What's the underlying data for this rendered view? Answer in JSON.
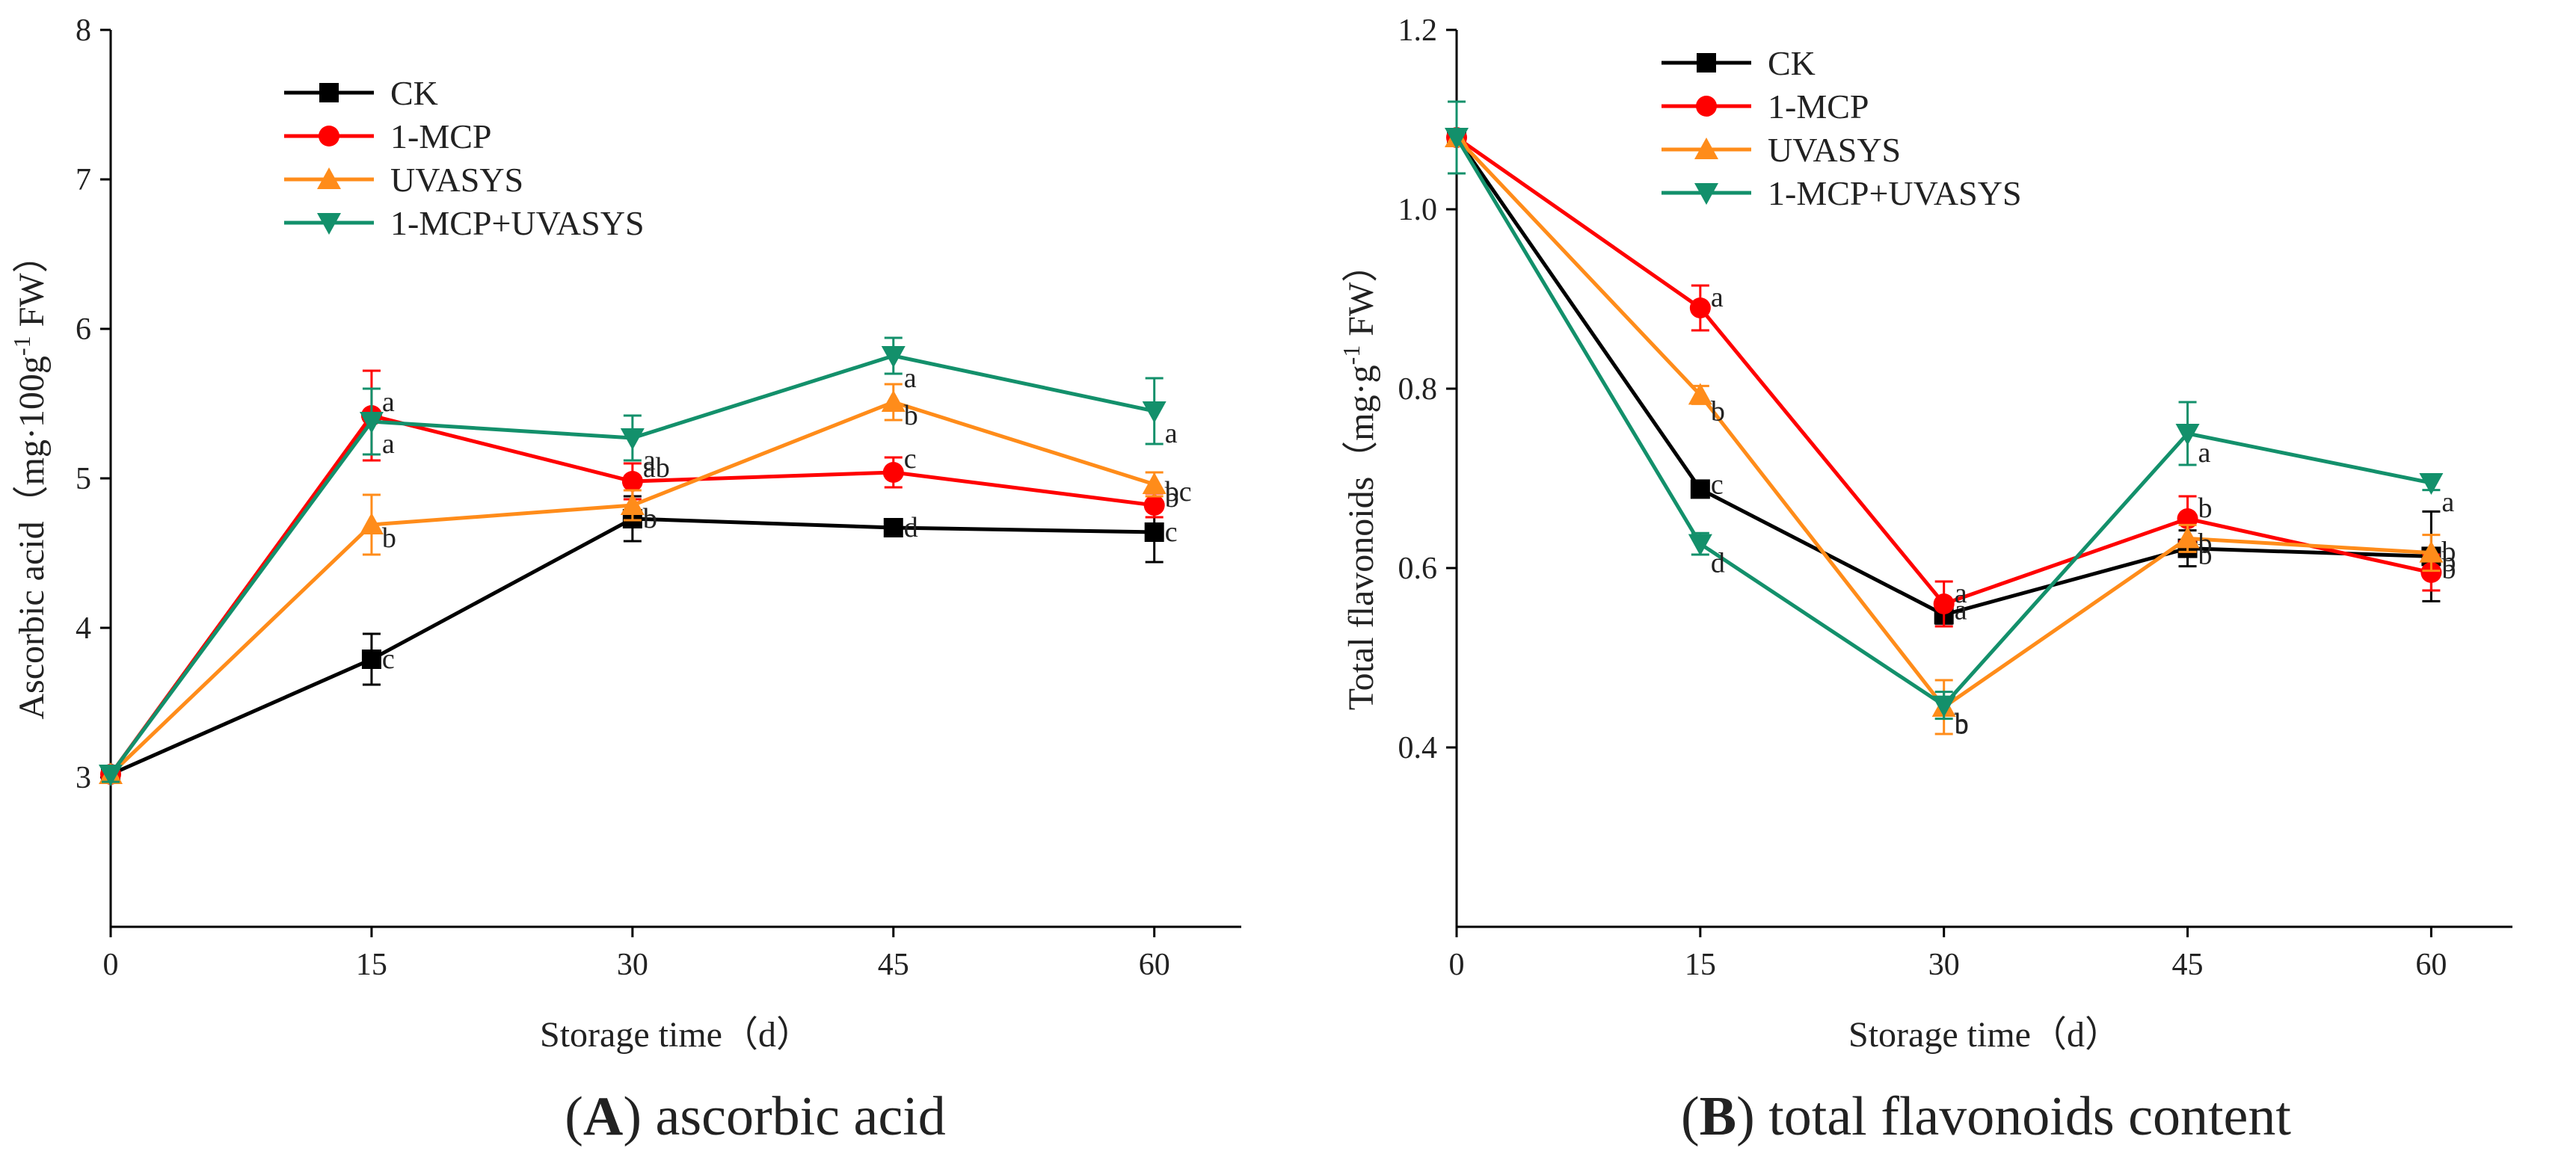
{
  "series_styles": [
    {
      "name": "CK",
      "color": "#000000",
      "marker": "square"
    },
    {
      "name": "1-MCP",
      "color": "#ff0000",
      "marker": "circle"
    },
    {
      "name": "UVASYS",
      "color": "#ff8c1a",
      "marker": "triangle-up"
    },
    {
      "name": "1-MCP+UVASYS",
      "color": "#13906b",
      "marker": "triangle-down"
    }
  ],
  "chart_data": [
    {
      "type": "line",
      "title": "",
      "caption_label": "A",
      "caption_text": ") ascorbic acid",
      "caption_open": "(",
      "xlabel": "Storage time（d）",
      "ylabel_main": "Ascorbic acid（mg·100g",
      "ylabel_sup": "-1",
      "ylabel_tail": " FW）",
      "x": [
        0,
        15,
        30,
        45,
        60
      ],
      "xlim": [
        0,
        65
      ],
      "ylim": [
        2,
        8
      ],
      "xticks": [
        "0",
        "15",
        "30",
        "45",
        "60"
      ],
      "yticks": [
        "3",
        "4",
        "5",
        "6",
        "7",
        "8"
      ],
      "ytick_values": [
        3,
        4,
        5,
        6,
        7,
        8
      ],
      "legend_position": "top-left",
      "series": [
        {
          "name": "CK",
          "values": [
            3.02,
            3.79,
            4.73,
            4.67,
            4.64
          ],
          "errors": [
            0.05,
            0.17,
            0.15,
            0.04,
            0.2
          ],
          "letters": [
            "",
            "c",
            "b",
            "d",
            "c"
          ]
        },
        {
          "name": "1-MCP",
          "values": [
            3.02,
            5.42,
            4.98,
            5.04,
            4.82
          ],
          "errors": [
            0.05,
            0.3,
            0.12,
            0.1,
            0.08
          ],
          "letters": [
            "",
            "a",
            "ab",
            "c",
            "bc"
          ]
        },
        {
          "name": "UVASYS",
          "values": [
            3.02,
            4.69,
            4.82,
            5.51,
            4.96
          ],
          "errors": [
            0.05,
            0.2,
            0.1,
            0.12,
            0.08
          ],
          "letters": [
            "",
            "b",
            "b",
            "b",
            "b"
          ]
        },
        {
          "name": "1-MCP+UVASYS",
          "values": [
            3.02,
            5.38,
            5.27,
            5.82,
            5.45
          ],
          "errors": [
            0.05,
            0.22,
            0.15,
            0.12,
            0.22
          ],
          "letters": [
            "",
            "a",
            "a",
            "a",
            "a"
          ]
        }
      ]
    },
    {
      "type": "line",
      "title": "",
      "caption_label": "B",
      "caption_text": ") total flavonoids content",
      "caption_open": "(",
      "xlabel": "Storage time（d）",
      "ylabel_main": "Total flavonoids（mg·g",
      "ylabel_sup": "-1",
      "ylabel_tail": " FW）",
      "x": [
        0,
        15,
        30,
        45,
        60
      ],
      "xlim": [
        0,
        65
      ],
      "ylim": [
        0.2,
        1.2
      ],
      "xticks": [
        "0",
        "15",
        "30",
        "45",
        "60"
      ],
      "yticks": [
        "0.4",
        "0.6",
        "0.8",
        "1.0",
        "1.2"
      ],
      "ytick_values": [
        0.4,
        0.6,
        0.8,
        1.0,
        1.2
      ],
      "legend_position": "top-left",
      "series": [
        {
          "name": "CK",
          "values": [
            1.08,
            0.688,
            0.548,
            0.622,
            0.613
          ],
          "errors": [
            0.04,
            0.008,
            0.01,
            0.02,
            0.05
          ],
          "letters": [
            "",
            "c",
            "a",
            "b",
            "b"
          ]
        },
        {
          "name": "1-MCP",
          "values": [
            1.08,
            0.89,
            0.56,
            0.655,
            0.595
          ],
          "errors": [
            0.04,
            0.025,
            0.025,
            0.025,
            0.02
          ],
          "letters": [
            "",
            "a",
            "a",
            "b",
            "b"
          ]
        },
        {
          "name": "UVASYS",
          "values": [
            1.08,
            0.793,
            0.445,
            0.633,
            0.617
          ],
          "errors": [
            0.04,
            0.01,
            0.03,
            0.015,
            0.02
          ],
          "letters": [
            "",
            "b",
            "b",
            "b",
            "b"
          ]
        },
        {
          "name": "1-MCP+UVASYS",
          "values": [
            1.08,
            0.627,
            0.447,
            0.75,
            0.695
          ],
          "errors": [
            0.04,
            0.012,
            0.015,
            0.035,
            0.008
          ],
          "letters": [
            "",
            "d",
            "b",
            "a",
            "a"
          ]
        }
      ]
    }
  ]
}
